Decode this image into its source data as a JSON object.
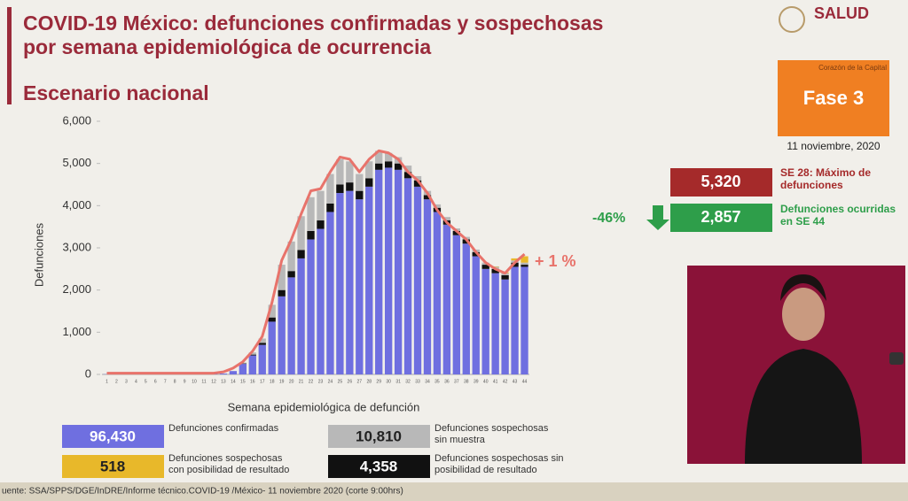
{
  "chart_data": {
    "type": "stacked-bar",
    "title_lines": [
      "COVID-19 México: defunciones confirmadas y sospechosas",
      "por semana epidemiológica de ocurrencia"
    ],
    "subtitle": "Escenario nacional",
    "x_label": "Semana epidemiológica de defunción",
    "y_label": "Defunciones",
    "categories": [
      "1",
      "2",
      "3",
      "4",
      "5",
      "6",
      "7",
      "8",
      "9",
      "10",
      "11",
      "12",
      "13",
      "14",
      "15",
      "16",
      "17",
      "18",
      "19",
      "20",
      "21",
      "22",
      "23",
      "24",
      "25",
      "26",
      "27",
      "28",
      "29",
      "30",
      "31",
      "32",
      "33",
      "34",
      "35",
      "36",
      "37",
      "38",
      "39",
      "40",
      "41",
      "42",
      "43",
      "44"
    ],
    "series": [
      {
        "name": "Defunciones confirmadas",
        "total": "96,430",
        "color": "#6f6fe0",
        "values": [
          5,
          5,
          5,
          5,
          5,
          5,
          5,
          5,
          5,
          5,
          5,
          10,
          20,
          80,
          250,
          450,
          700,
          1250,
          1850,
          2300,
          2750,
          3200,
          3450,
          3850,
          4300,
          4350,
          4150,
          4450,
          4850,
          4900,
          4850,
          4650,
          4450,
          4150,
          3850,
          3550,
          3300,
          3100,
          2800,
          2500,
          2400,
          2250,
          2550,
          2550
        ]
      },
      {
        "name": "Defunciones sospechosas sin posibilidad de resultado",
        "total": "4,358",
        "color": "#111111",
        "values": [
          0,
          0,
          0,
          0,
          0,
          0,
          0,
          0,
          0,
          0,
          0,
          0,
          0,
          0,
          10,
          20,
          50,
          100,
          150,
          150,
          200,
          200,
          200,
          200,
          200,
          200,
          200,
          200,
          150,
          150,
          150,
          150,
          150,
          100,
          100,
          100,
          100,
          100,
          100,
          100,
          100,
          100,
          100,
          50
        ]
      },
      {
        "name": "Defunciones sospechosas sin muestra",
        "total": "10,810",
        "color": "#b8b8b8",
        "values": [
          0,
          0,
          0,
          0,
          0,
          0,
          0,
          0,
          0,
          0,
          0,
          0,
          0,
          0,
          20,
          50,
          100,
          300,
          600,
          700,
          800,
          800,
          700,
          700,
          600,
          500,
          400,
          400,
          300,
          200,
          150,
          150,
          100,
          100,
          80,
          80,
          60,
          60,
          60,
          50,
          50,
          50,
          50,
          50
        ]
      },
      {
        "name": "Defunciones sospechosas con posibilidad de resultado",
        "total": "518",
        "color": "#e8b82a",
        "values": [
          0,
          0,
          0,
          0,
          0,
          0,
          0,
          0,
          0,
          0,
          0,
          0,
          0,
          0,
          0,
          0,
          0,
          0,
          0,
          0,
          0,
          0,
          0,
          0,
          0,
          0,
          0,
          0,
          0,
          0,
          0,
          0,
          0,
          0,
          0,
          0,
          0,
          0,
          0,
          0,
          10,
          20,
          50,
          150
        ]
      }
    ],
    "trend": {
      "color": "#e8736b",
      "values": [
        30,
        30,
        30,
        30,
        30,
        30,
        30,
        30,
        30,
        30,
        30,
        30,
        60,
        150,
        300,
        550,
        900,
        1700,
        2700,
        3200,
        3800,
        4350,
        4400,
        4800,
        5150,
        5100,
        4800,
        5100,
        5300,
        5250,
        5100,
        4800,
        4600,
        4300,
        3900,
        3600,
        3400,
        3200,
        2900,
        2650,
        2500,
        2400,
        2650,
        2850
      ]
    },
    "trend_annotation": "+ 1 %",
    "ylim": [
      0,
      6000
    ],
    "yticks": [
      0,
      {
        "value": 1000,
        "label": "1,000"
      },
      {
        "value": 2000,
        "label": "2,000"
      },
      {
        "value": 3000,
        "label": "3,000"
      },
      {
        "value": 4000,
        "label": "4,000"
      },
      {
        "value": 5000,
        "label": "5,000"
      },
      {
        "value": 6000,
        "label": "6,000"
      }
    ]
  },
  "side_panel": {
    "logo": "SALUD",
    "tagline": "Corazón de la Capital",
    "phase": "Fase 3",
    "date": "11 noviembre, 2020",
    "max_value": "5,320",
    "max_label": "SE 28: Máximo de defunciones",
    "change": "-46%",
    "current_value": "2,857",
    "current_label": "Defunciones ocurridas en SE 44"
  },
  "footer": "uente: SSA/SPPS/DGE/InDRE/Informe técnico.COVID-19 /México- 11 noviembre 2020 (corte 9:00hrs)"
}
